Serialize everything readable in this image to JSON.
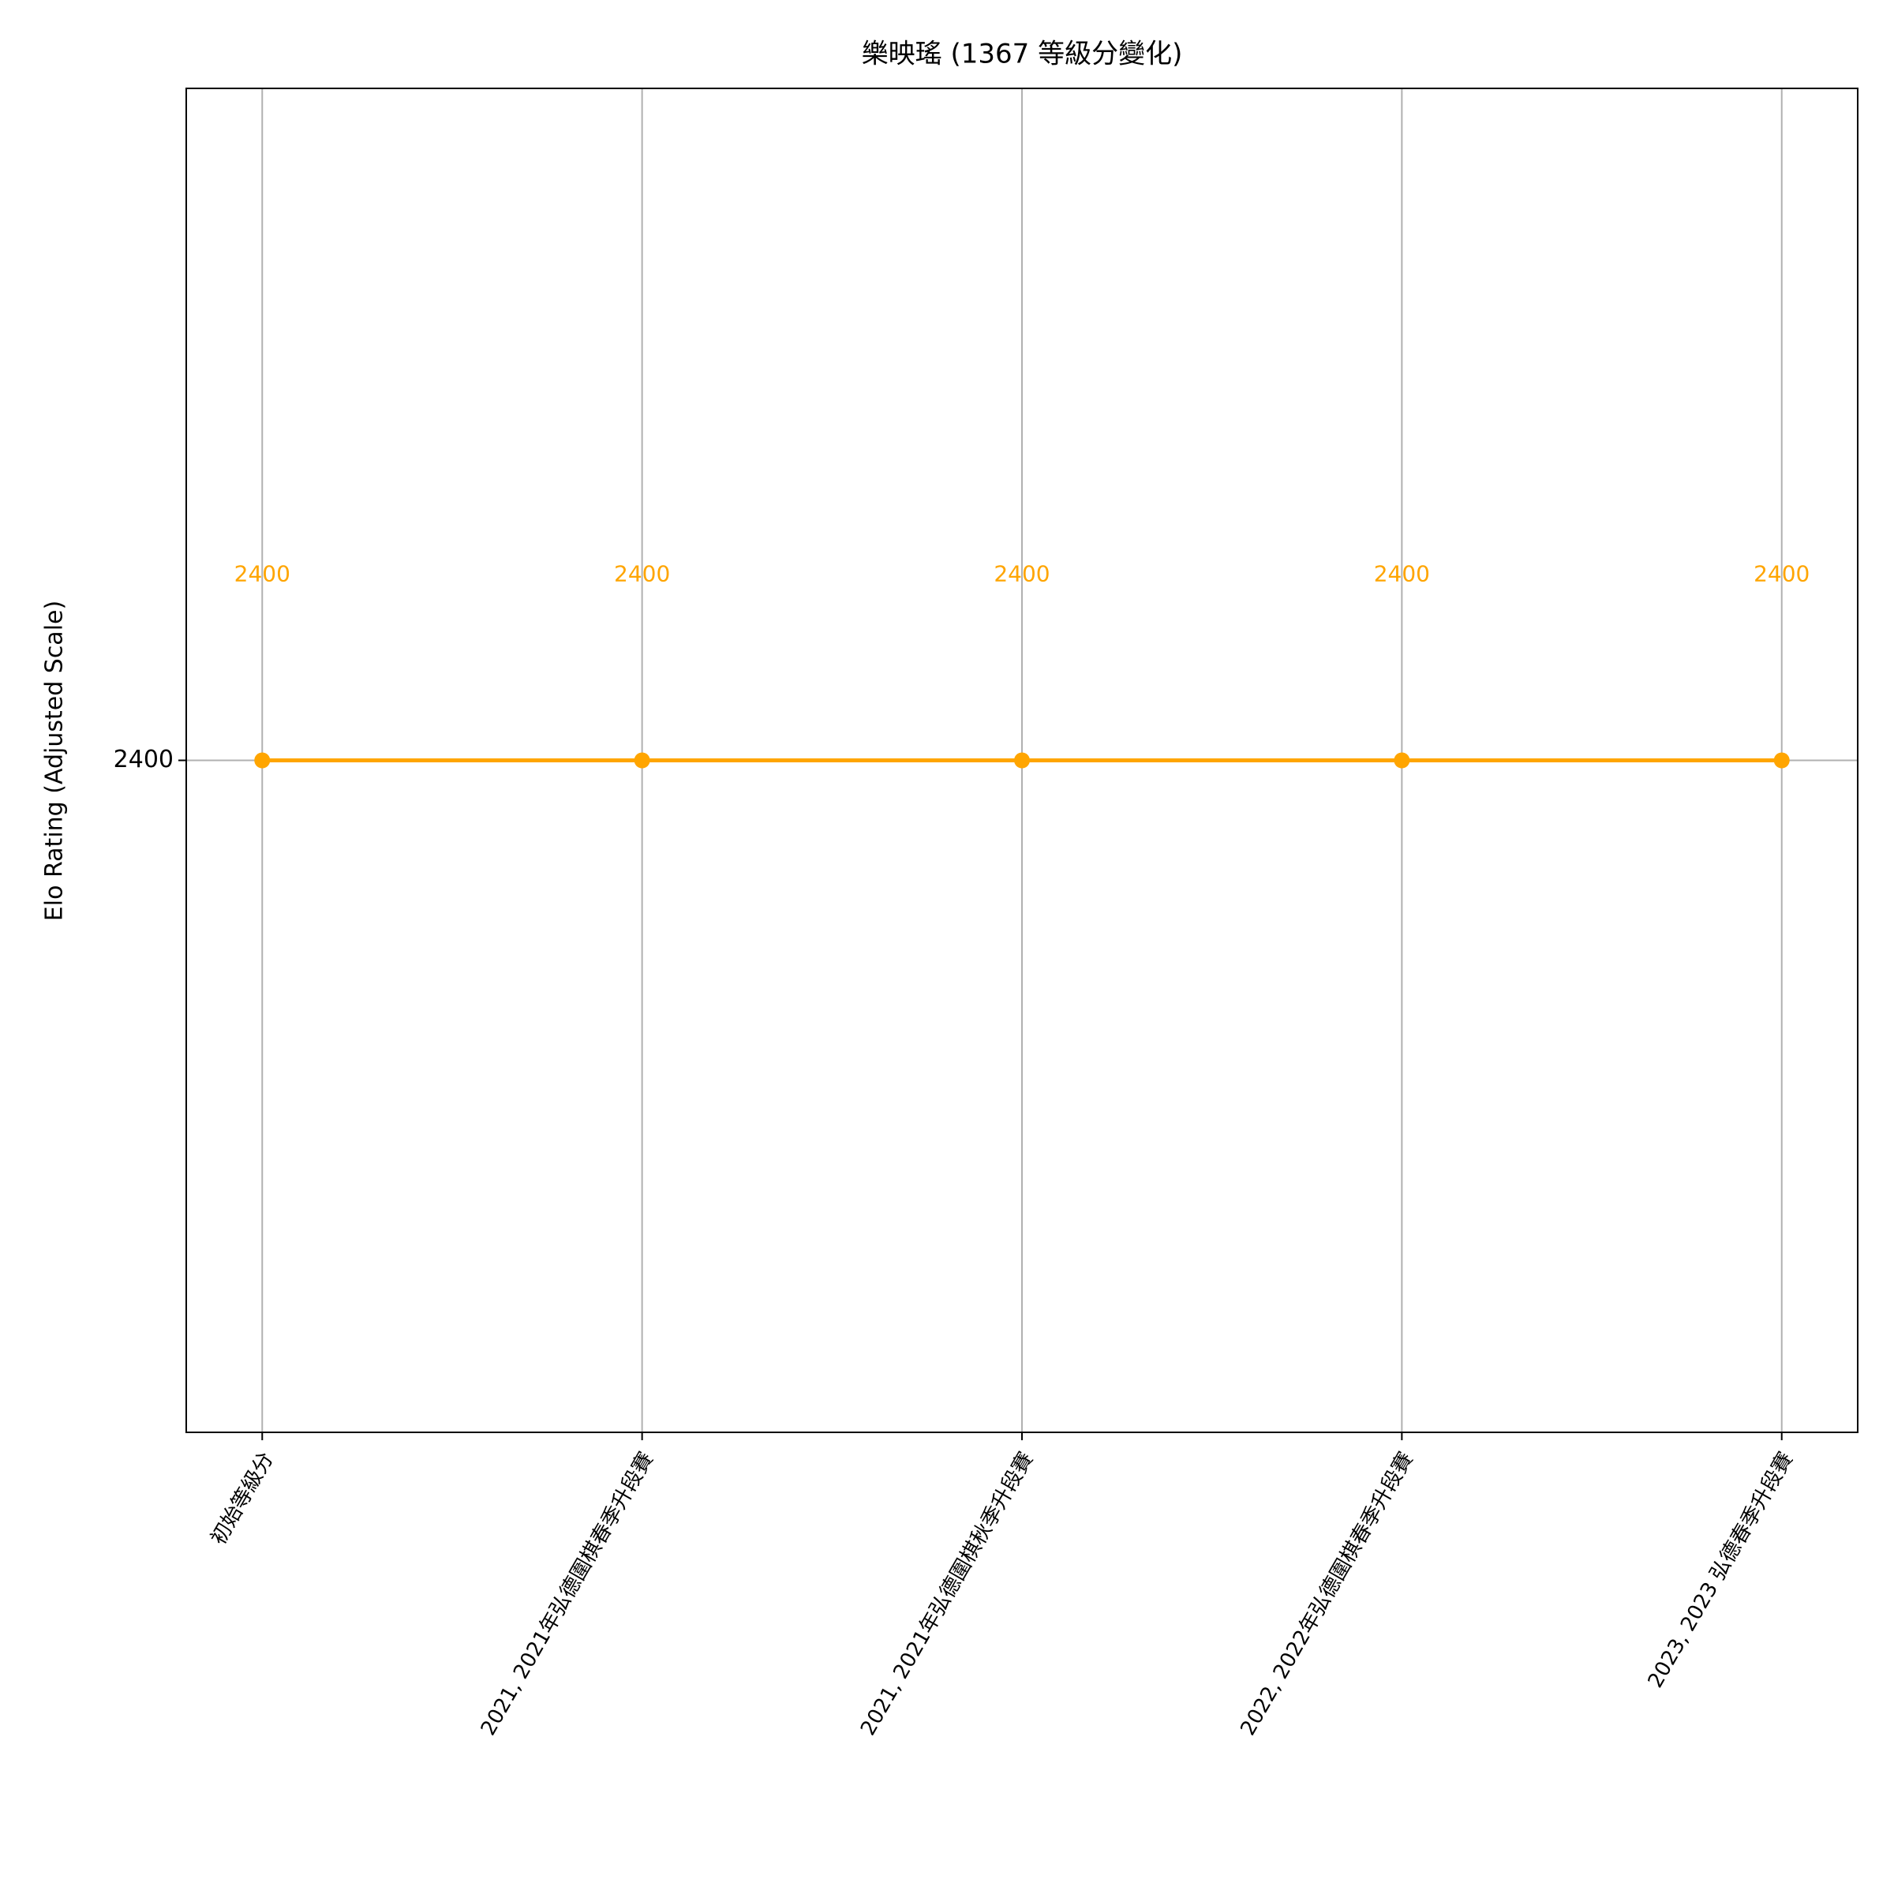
{
  "chart_data": {
    "type": "line",
    "title": "樂映瑤 (1367 等級分變化)",
    "y_label": "Elo Rating (Adjusted Scale)",
    "categories": [
      "初始等級分",
      "2021, 2021年弘德圍棋春季升段賽",
      "2021, 2021年弘德圍棋秋季升段賽",
      "2022, 2022年弘德圍棋春季升段賽",
      "2023, 2023 弘德春季升段賽"
    ],
    "series": [
      {
        "name": "Elo",
        "color": "#ffa500",
        "values": [
          2400,
          2400,
          2400,
          2400,
          2400
        ]
      }
    ],
    "ylim": [
      2397.6,
      2402.4
    ],
    "yticks": [
      2400
    ],
    "grid": true
  }
}
